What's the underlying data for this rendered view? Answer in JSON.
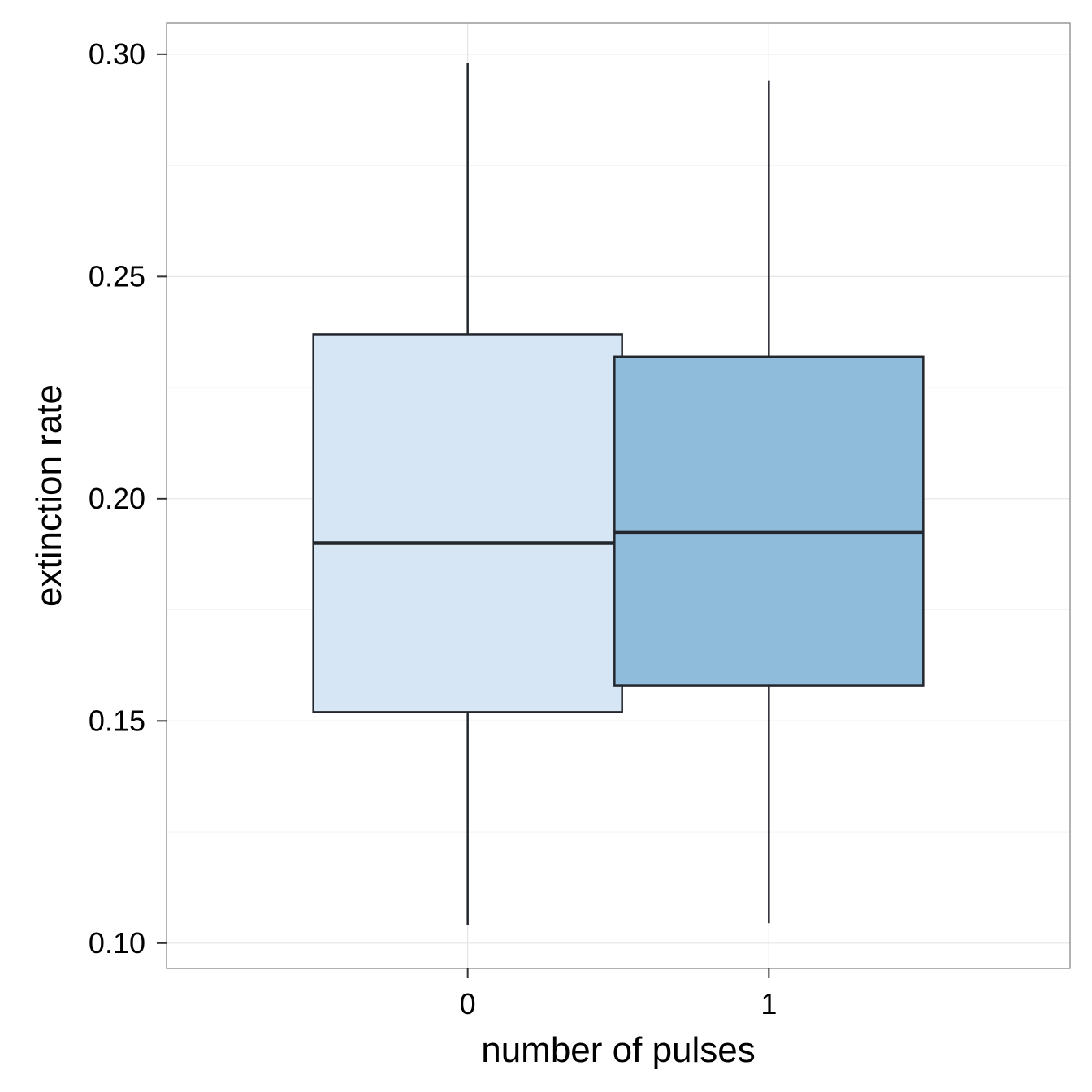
{
  "chart_data": {
    "type": "boxplot",
    "xlabel": "number of pulses",
    "ylabel": "extinction rate",
    "categories": [
      "0",
      "1"
    ],
    "yticks": [
      "0.10",
      "0.15",
      "0.20",
      "0.25",
      "0.30"
    ],
    "ytick_values": [
      0.1,
      0.15,
      0.2,
      0.25,
      0.3
    ],
    "ylim": [
      0.0943,
      0.3071
    ],
    "grid": true,
    "boxes": [
      {
        "category": "0",
        "min": 0.104,
        "q1": 0.152,
        "median": 0.19,
        "q3": 0.237,
        "max": 0.298,
        "color": "#d6e6f4"
      },
      {
        "category": "1",
        "min": 0.1045,
        "q1": 0.158,
        "median": 0.1925,
        "q3": 0.232,
        "max": 0.294,
        "color": "#8fbcdb"
      }
    ],
    "colors": {
      "box_stroke": "#22262d",
      "grid_major": "#e5e5e5",
      "grid_minor": "#f3f3f3",
      "panel_border": "#7f7f7f"
    }
  }
}
